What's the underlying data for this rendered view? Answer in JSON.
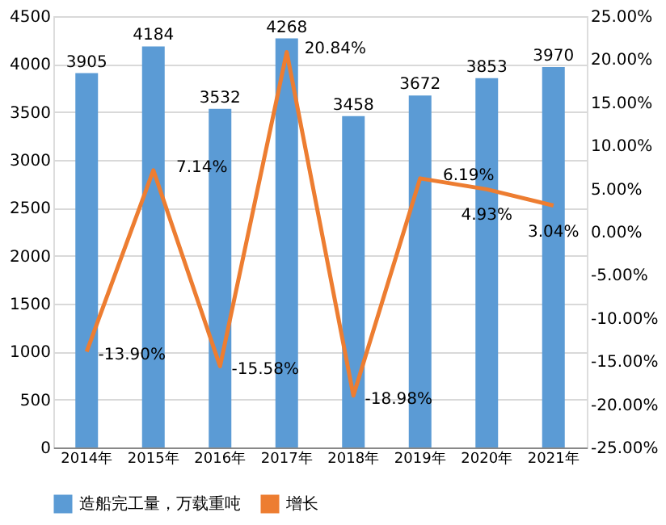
{
  "chart_data": {
    "type": "bar",
    "categories": [
      "2014年",
      "2015年",
      "2016年",
      "2017年",
      "2018年",
      "2019年",
      "2020年",
      "2021年"
    ],
    "series": [
      {
        "name": "造船完工量，万载重吨",
        "color": "#5b9bd5",
        "values": [
          3905,
          4184,
          3532,
          4268,
          3458,
          3672,
          3853,
          3970
        ]
      },
      {
        "name": "增长",
        "type": "line",
        "axis": "y2",
        "color": "#ed7d31",
        "values": [
          -13.9,
          7.14,
          -15.58,
          20.84,
          -18.98,
          6.19,
          4.93,
          3.04
        ],
        "value_labels": [
          "-13.90%",
          "7.14%",
          "-15.58%",
          "20.84%",
          "-18.98%",
          "6.19%",
          "4.93%",
          "3.04%"
        ]
      }
    ],
    "ylim": [
      0,
      4500
    ],
    "yticks": [
      0,
      500,
      1000,
      1500,
      2000,
      2500,
      3000,
      3500,
      4000,
      4500
    ],
    "y2lim": [
      -25,
      25
    ],
    "y2ticks": [
      {
        "value": -25,
        "label": "-25.00%"
      },
      {
        "value": -20,
        "label": "-20.00%"
      },
      {
        "value": -15,
        "label": "-15.00%"
      },
      {
        "value": -10,
        "label": "-10.00%"
      },
      {
        "value": -5,
        "label": "-5.00%"
      },
      {
        "value": 0,
        "label": "0.00%"
      },
      {
        "value": 5,
        "label": "5.00%"
      },
      {
        "value": 10,
        "label": "10.00%"
      },
      {
        "value": 15,
        "label": "15.00%"
      },
      {
        "value": 20,
        "label": "20.00%"
      },
      {
        "value": 25,
        "label": "25.00%"
      }
    ],
    "grid": "y",
    "legend": "bottom",
    "data_labels": true,
    "line_style": "solid",
    "marker": "none"
  }
}
